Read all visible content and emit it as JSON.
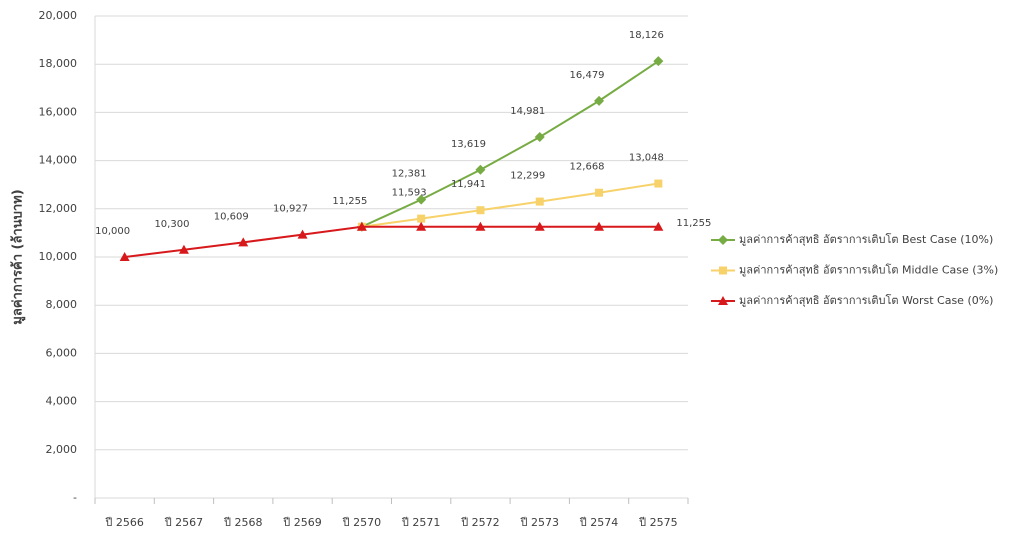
{
  "chart_data": {
    "type": "line",
    "y_label": "มูลค่าการค้า (ล้านบาท)",
    "categories": [
      "ปี 2566",
      "ปี 2567",
      "ปี 2568",
      "ปี 2569",
      "ปี 2570",
      "ปี 2571",
      "ปี 2572",
      "ปี 2573",
      "ปี 2574",
      "ปี 2575"
    ],
    "series": [
      {
        "name": "มูลค่าการค้าสุทธิ อัตราการเติบโต Best Case (10%)",
        "color": "#77ab43",
        "marker": "diamond",
        "values": [
          null,
          null,
          null,
          null,
          11255,
          12381,
          13619,
          14981,
          16479,
          18126
        ],
        "value_labels": [
          null,
          null,
          null,
          null,
          null,
          "12,381",
          "13,619",
          "14,981",
          "16,479",
          "18,126"
        ]
      },
      {
        "name": "มูลค่าการค้าสุทธิ อัตราการเติบโต Middle Case (3%)",
        "color": "#f7d26a",
        "marker": "square",
        "values": [
          null,
          null,
          null,
          null,
          11255,
          11593,
          11941,
          12299,
          12668,
          13048
        ],
        "value_labels": [
          null,
          null,
          null,
          null,
          null,
          "11,593",
          "11,941",
          "12,299",
          "12,668",
          "13,048"
        ]
      },
      {
        "name": "มูลค่าการค้าสุทธิ อัตราการเติบโต Worst Case (0%)",
        "color": "#d8191c",
        "marker": "triangle",
        "values": [
          10000,
          10300,
          10609,
          10927,
          11255,
          11255,
          11255,
          11255,
          11255,
          11255
        ],
        "value_labels": [
          "10,000",
          "10,300",
          "10,609",
          "10,927",
          "11,255",
          null,
          null,
          null,
          null,
          "11,255"
        ]
      }
    ],
    "ylim": [
      0,
      20000
    ],
    "yticks": [
      {
        "value": 0,
        "label": "-"
      },
      {
        "value": 2000,
        "label": "2,000"
      },
      {
        "value": 4000,
        "label": "4,000"
      },
      {
        "value": 6000,
        "label": "6,000"
      },
      {
        "value": 8000,
        "label": "8,000"
      },
      {
        "value": 10000,
        "label": "10,000"
      },
      {
        "value": 12000,
        "label": "12,000"
      },
      {
        "value": 14000,
        "label": "14,000"
      },
      {
        "value": 16000,
        "label": "16,000"
      },
      {
        "value": 18000,
        "label": "18,000"
      },
      {
        "value": 20000,
        "label": "20,000"
      }
    ],
    "grid": true,
    "legend": "right"
  }
}
